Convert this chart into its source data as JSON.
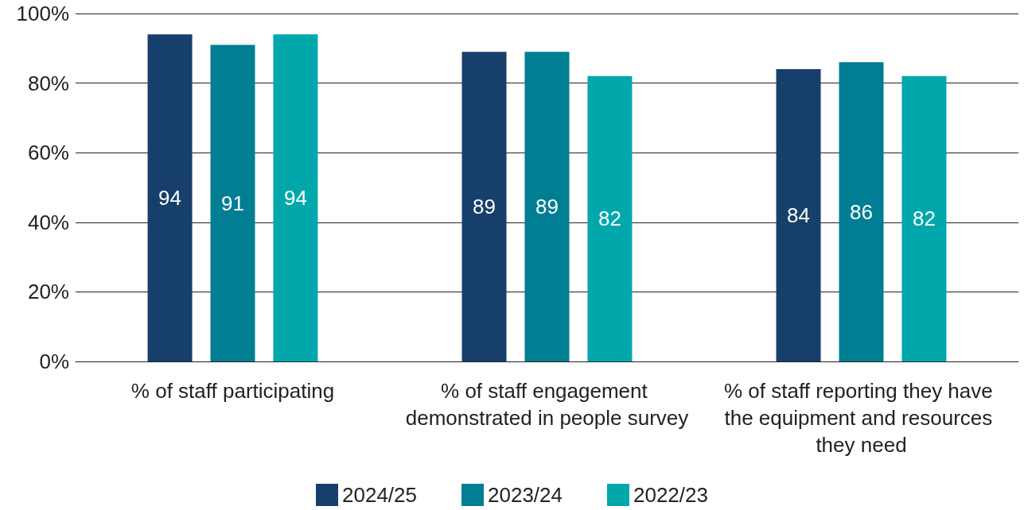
{
  "chart_data": {
    "type": "bar",
    "categories": [
      "% of staff participating",
      "% of staff engagement demonstrated in people survey",
      "% of staff reporting they have the equipment and resources they need"
    ],
    "series": [
      {
        "name": "2024/25",
        "color": "#173f6b",
        "values": [
          94,
          89,
          84
        ]
      },
      {
        "name": "2023/24",
        "color": "#007e94",
        "values": [
          91,
          89,
          86
        ]
      },
      {
        "name": "2022/23",
        "color": "#00a8ac",
        "values": [
          94,
          82,
          82
        ]
      }
    ],
    "ylim": [
      0,
      100
    ],
    "yticks": [
      {
        "value": 0,
        "label": "0%"
      },
      {
        "value": 20,
        "label": "20%"
      },
      {
        "value": 40,
        "label": "40%"
      },
      {
        "value": 60,
        "label": "60%"
      },
      {
        "value": 80,
        "label": "80%"
      },
      {
        "value": 100,
        "label": "100%"
      }
    ],
    "grid": "y",
    "legend": "bottom",
    "data_labels": true
  }
}
